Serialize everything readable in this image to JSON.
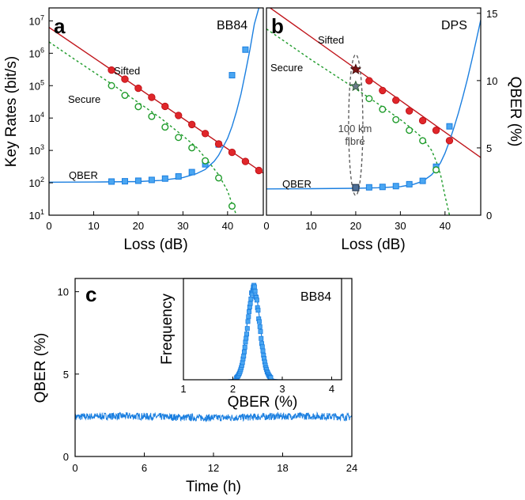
{
  "colors": {
    "sifted": "#c0151b",
    "sifted_fill": "#e0262a",
    "secure": "#1e9b2a",
    "qber": "#1b7fe0",
    "qber_fill": "#4aa6f2",
    "ellipse": "#555555",
    "star_fill": "#6b7a8a"
  },
  "chart_data": [
    {
      "panel": "a",
      "type": "scatter",
      "protocol_label": "BB84",
      "xlabel": "Loss (dB)",
      "ylabel": "Key Rates (bit/s)",
      "xlim": [
        0,
        48
      ],
      "x_ticks": [
        0,
        10,
        20,
        30,
        40
      ],
      "y_scale": "log",
      "ylim_log10": [
        1,
        7.4
      ],
      "y_ticks": [
        {
          "exp": 1,
          "label_base": "10",
          "label_exp": "1"
        },
        {
          "exp": 2,
          "label_base": "10",
          "label_exp": "2"
        },
        {
          "exp": 3,
          "label_base": "10",
          "label_exp": "3"
        },
        {
          "exp": 4,
          "label_base": "10",
          "label_exp": "4"
        },
        {
          "exp": 5,
          "label_base": "10",
          "label_exp": "5"
        },
        {
          "exp": 6,
          "label_base": "10",
          "label_exp": "6"
        },
        {
          "exp": 7,
          "label_base": "10",
          "label_exp": "7"
        }
      ],
      "qber_scale": {
        "ylim": [
          0,
          15.4
        ]
      },
      "series": [
        {
          "name": "Sifted",
          "marker": "circle-filled",
          "x": [
            14,
            17,
            20,
            23,
            26,
            29,
            32,
            35,
            38,
            41,
            44,
            47
          ],
          "log10_y": [
            5.48,
            5.2,
            4.92,
            4.64,
            4.36,
            4.08,
            3.8,
            3.52,
            3.2,
            2.94,
            2.66,
            2.38
          ],
          "fit_line": {
            "x": [
              0,
              48
            ],
            "log10_y": [
              6.8,
              2.3
            ]
          }
        },
        {
          "name": "Secure",
          "marker": "circle-open",
          "x": [
            14,
            17,
            20,
            23,
            26,
            29,
            32,
            35,
            38,
            41
          ],
          "log10_y": [
            5.0,
            4.7,
            4.35,
            4.05,
            3.72,
            3.4,
            3.08,
            2.68,
            2.15,
            1.28
          ],
          "fit_curve": {
            "x": [
              0,
              5,
              10,
              15,
              20,
              25,
              30,
              33,
              36,
              38,
              40,
              41,
              42
            ],
            "log10_y": [
              6.35,
              5.88,
              5.42,
              4.96,
              4.48,
              4.0,
              3.45,
              3.1,
              2.6,
              2.25,
              1.75,
              1.35,
              1.0
            ]
          }
        },
        {
          "name": "QBER",
          "marker": "square-filled",
          "unit": "%",
          "x": [
            14,
            17,
            20,
            23,
            26,
            29,
            32,
            35,
            38,
            41,
            44
          ],
          "y": [
            2.5,
            2.52,
            2.56,
            2.62,
            2.72,
            2.88,
            3.2,
            3.78,
            5.25,
            10.4,
            12.3
          ],
          "fit_curve": {
            "x": [
              0,
              10,
              20,
              25,
              30,
              33,
              35,
              37,
              38,
              40,
              41,
              42,
              43,
              44,
              45,
              46,
              47
            ],
            "y": [
              2.45,
              2.46,
              2.5,
              2.58,
              2.8,
              3.08,
              3.4,
              4.0,
              4.45,
              5.7,
              6.6,
              7.7,
              9.0,
              10.6,
              12.3,
              14.2,
              15.4
            ]
          }
        }
      ]
    },
    {
      "panel": "b",
      "type": "scatter",
      "protocol_label": "DPS",
      "xlabel": "Loss (dB)",
      "ylabel": "QBER (%)",
      "xlim": [
        0,
        48
      ],
      "x_ticks": [
        0,
        10,
        20,
        30,
        40
      ],
      "y_scale": "log",
      "ylim_log10": [
        1,
        7.4
      ],
      "qber_scale": {
        "ylim": [
          0,
          15.4
        ],
        "ticks": [
          0,
          5,
          10,
          15
        ]
      },
      "annotation": {
        "line1": "100 km",
        "line2": "fibre",
        "x": 20
      },
      "series": [
        {
          "name": "Sifted",
          "marker": "circle-filled",
          "x": [
            20,
            23,
            26,
            29,
            32,
            35,
            38,
            41
          ],
          "log10_y": [
            5.5,
            5.15,
            4.85,
            4.55,
            4.22,
            3.92,
            3.62,
            3.3
          ],
          "fit_line": {
            "x": [
              0,
              48
            ],
            "log10_y": [
              7.48,
              2.78
            ]
          },
          "star_at": 20
        },
        {
          "name": "Secure",
          "marker": "circle-open",
          "x": [
            20,
            23,
            26,
            29,
            32,
            35,
            38
          ],
          "log10_y": [
            4.98,
            4.6,
            4.27,
            3.95,
            3.62,
            3.3,
            2.4
          ],
          "fit_curve": {
            "x": [
              0,
              5,
              10,
              15,
              20,
              25,
              30,
              33,
              35,
              37,
              38,
              39,
              40,
              41
            ],
            "log10_y": [
              6.75,
              6.28,
              5.8,
              5.35,
              4.9,
              4.44,
              3.95,
              3.62,
              3.38,
              3.0,
              2.68,
              2.25,
              1.6,
              1.0
            ]
          },
          "star_at": 20
        },
        {
          "name": "QBER",
          "marker": "square-filled",
          "unit": "%",
          "x": [
            20,
            23,
            26,
            29,
            32,
            35,
            38,
            41
          ],
          "y": [
            2.05,
            2.07,
            2.1,
            2.16,
            2.3,
            2.55,
            3.6,
            6.6
          ],
          "fit_curve": {
            "x": [
              0,
              10,
              20,
              25,
              30,
              33,
              35,
              37,
              38,
              39,
              40,
              41,
              42,
              43,
              44,
              45,
              46,
              47,
              48
            ],
            "y": [
              1.95,
              1.97,
              2.0,
              2.04,
              2.12,
              2.3,
              2.52,
              3.0,
              3.4,
              3.9,
              4.6,
              5.5,
              6.5,
              7.6,
              8.8,
              10.1,
              11.5,
              13.0,
              14.5
            ]
          }
        }
      ]
    },
    {
      "panel": "c",
      "type": "line",
      "xlabel": "Time (h)",
      "ylabel": "QBER (%)",
      "xlim": [
        0,
        24
      ],
      "x_ticks": [
        0,
        6,
        12,
        18,
        24
      ],
      "ylim": [
        0,
        10.8
      ],
      "y_ticks": [
        0,
        5,
        10
      ],
      "series": [
        {
          "name": "QBER vs time",
          "mean": 2.4,
          "noise_amplitude": 0.22
        }
      ],
      "inset": {
        "type": "histogram",
        "protocol_label": "BB84",
        "xlabel": "QBER (%)",
        "ylabel": "Frequency",
        "xlim": [
          1,
          4.2
        ],
        "x_ticks": [
          1,
          2,
          3,
          4
        ],
        "gaussian_mean": 2.42,
        "gaussian_sigma": 0.13
      }
    }
  ]
}
